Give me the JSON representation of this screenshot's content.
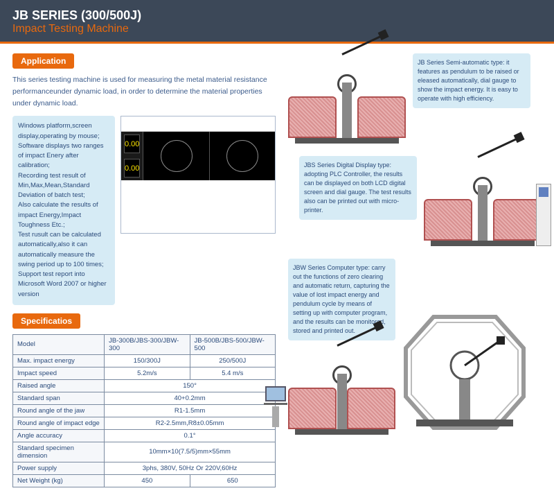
{
  "header": {
    "series": "JB SERIES (300/500J)",
    "subtitle": "Impact Testing Machine"
  },
  "labels": {
    "application": "Application",
    "specifications": "Specificatios"
  },
  "intro": "This series testing machine is used for measuring the metal material resistance performanceunder dynamic load, in order to determine the material properties under dynamic load.",
  "features_text": "Windows platform,screen display,operating by mouse;\nSoftware displays two ranges of impact Enery after calibration;\nRecording test result of Min,Max,Mean,Standard Deviation of batch test;\nAlso calculate the results of impact Energy,Impact Toughness Etc.;\nTest rusult can be calculated automatically,also it can automatically measure the swing period up to 100 times;\nSupport test report into Microsoft Word 2007 or higher version",
  "sw_readout": "0.00",
  "spec": {
    "headers": [
      "Model",
      "JB-300B/JBS-300/JBW-300",
      "JB-500B/JBS-500/JBW-500"
    ],
    "rows": [
      {
        "label": "Max. impact energy",
        "c1": "150/300J",
        "c2": "250/500J",
        "span": false
      },
      {
        "label": "Impact speed",
        "c1": "5.2m/s",
        "c2": "5.4 m/s",
        "span": false
      },
      {
        "label": "Raised angle",
        "c1": "150°",
        "span": true
      },
      {
        "label": "Standard span",
        "c1": "40+0.2mm",
        "span": true
      },
      {
        "label": "Round angle of the jaw",
        "c1": "R1-1.5mm",
        "span": true
      },
      {
        "label": "Round angle of impact edge",
        "c1": "R2-2.5mm,R8±0.05mm",
        "span": true
      },
      {
        "label": "Angle accuracy",
        "c1": "0.1°",
        "span": true
      },
      {
        "label": "Standard specimen dimension",
        "c1": "10mm×10(7.5/5)mm×55mm",
        "span": true
      },
      {
        "label": "Power supply",
        "c1": "3phs, 380V, 50Hz Or 220V,60Hz",
        "span": true
      },
      {
        "label": "Net Weight (kg)",
        "c1": "450",
        "c2": "650",
        "span": false
      }
    ]
  },
  "variants": {
    "semi": "JB Series Semi-automatic type: it features as pendulum to be raised or eleased automatically, dial gauge to show the impact energy. It is easy to operate with high efficiency.",
    "digital": "JBS Series Digital Display type: adopting PLC Controller, the results can be displayed on both LCD digital screen and dial gauge. The test results also can be printed out with micro-printer.",
    "computer": "JBW Series Computer type: carry out the functions of zero clearing and automatic return, capturing the value of lost impact energy and pendulum cycle by means of setting up with computer program, and the results can be monitored, stored and printed out."
  },
  "colors": {
    "header_bg": "#3c4858",
    "accent": "#e8690e",
    "info_bg": "#d6ebf5",
    "text_blue": "#2a4a7a",
    "guard_fill": "#d89090",
    "guard_border": "#b05050",
    "table_border": "#7a8aa0"
  }
}
